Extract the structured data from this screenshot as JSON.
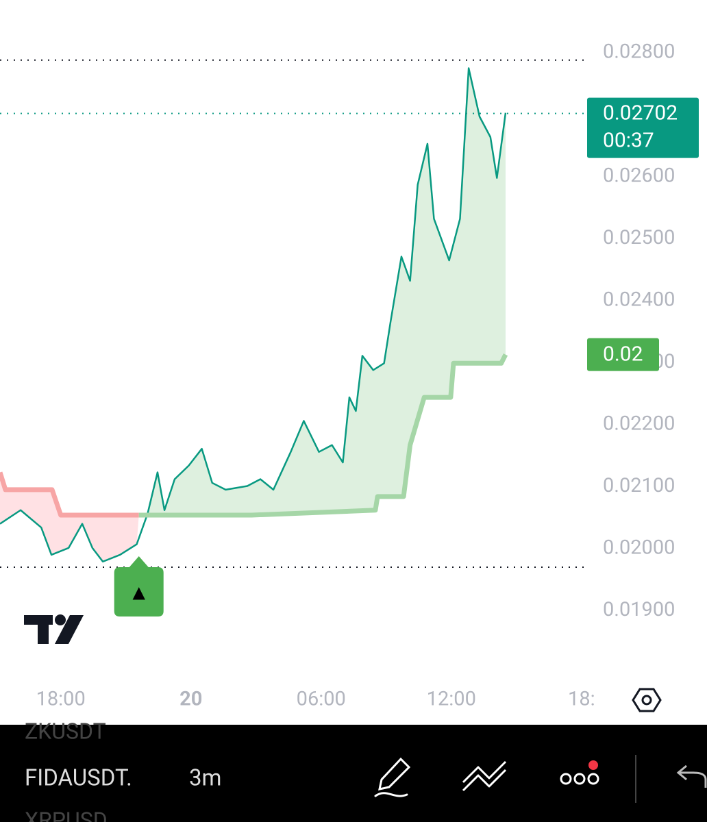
{
  "chart_data": {
    "type": "line",
    "xlim": [
      15.2,
      42.1
    ],
    "xticks": [
      {
        "value": 18,
        "label": "18:00"
      },
      {
        "value": 24,
        "label": "20"
      },
      {
        "value": 30,
        "label": "06:00"
      },
      {
        "value": 36,
        "label": "12:00"
      },
      {
        "value": 42,
        "label": "18:"
      }
    ],
    "ylim": [
      0.01791,
      0.02885
    ],
    "yticks": [
      {
        "value": 0.019,
        "label": "0.01900"
      },
      {
        "value": 0.02,
        "label": "0.02000"
      },
      {
        "value": 0.021,
        "label": "0.02100"
      },
      {
        "value": 0.022,
        "label": "0.02200"
      },
      {
        "value": 0.023,
        "label": "0.02300"
      },
      {
        "value": 0.024,
        "label": "0.02400"
      },
      {
        "value": 0.025,
        "label": "0.02500"
      },
      {
        "value": 0.026,
        "label": "0.02600"
      },
      {
        "value": 0.028,
        "label": "0.02800"
      }
    ],
    "series": [
      {
        "color": "#089981",
        "x": [
          15.2,
          16.15,
          17.1,
          17.57,
          18.36,
          18.99,
          19.46,
          19.94,
          20.73,
          21.5,
          22.0,
          22.46,
          22.78,
          23.25,
          23.9,
          24.5,
          24.98,
          25.6,
          26.6,
          27.2,
          27.8,
          28.6,
          29.2,
          29.9,
          30.5,
          31.0,
          31.3,
          31.6,
          31.9,
          32.4,
          32.9,
          33.2,
          33.7,
          34.1,
          34.45,
          34.9,
          35.2,
          35.9,
          36.4,
          36.8,
          37.3,
          37.8,
          38.1,
          38.5
        ],
        "values": [
          0.0204,
          0.02062,
          0.02034,
          0.0199,
          0.02001,
          0.0204,
          0.02001,
          0.01979,
          0.0199,
          0.02007,
          0.02056,
          0.02123,
          0.02062,
          0.02112,
          0.02134,
          0.02161,
          0.02106,
          0.02095,
          0.02101,
          0.02112,
          0.02095,
          0.02156,
          0.02206,
          0.02156,
          0.02167,
          0.02139,
          0.02244,
          0.02222,
          0.02311,
          0.02288,
          0.02299,
          0.02366,
          0.02471,
          0.02432,
          0.02587,
          0.02653,
          0.02532,
          0.02465,
          0.02532,
          0.02775,
          0.02697,
          0.02664,
          0.02598,
          0.02703
        ]
      },
      {
        "color": "#f7a5a5",
        "x": [
          15.2,
          15.45,
          17.6,
          18.0,
          21.6
        ],
        "values": [
          0.02123,
          0.02095,
          0.02095,
          0.02054,
          0.02054
        ]
      },
      {
        "color": "#a5d6a7",
        "x": [
          21.6,
          26.8,
          32.5,
          32.6,
          33.8,
          34.1,
          34.75,
          35.97,
          36.1,
          38.3,
          38.5
        ],
        "values": [
          0.02054,
          0.02054,
          0.02062,
          0.02084,
          0.02084,
          0.02167,
          0.02244,
          0.02244,
          0.02299,
          0.02299,
          0.02313
        ]
      }
    ],
    "extremes": [
      0.02788,
      0.0197
    ],
    "last_price": {
      "value": 0.02702,
      "label": "0.02702",
      "countdown": "00:37"
    },
    "trend_badge": {
      "value": 0.02313,
      "label": "0.02"
    },
    "signal": {
      "x": 21.6,
      "label": "▲"
    }
  },
  "toolbar": {
    "symbols": [
      "ZKUSDT",
      "FIDAUSDT.",
      "XRPUSD"
    ],
    "interval": "3m"
  }
}
